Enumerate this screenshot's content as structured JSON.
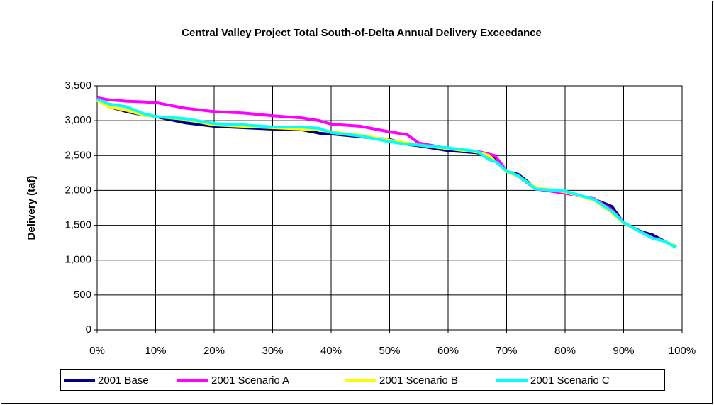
{
  "chart_data": {
    "type": "line",
    "title": "Central Valley Project Total South-of-Delta Annual Delivery Exceedance",
    "y_label": "Delivery (taf)",
    "x": [
      0,
      2,
      5,
      8,
      10,
      15,
      20,
      25,
      30,
      35,
      38,
      40,
      45,
      50,
      53,
      55,
      60,
      65,
      67,
      68,
      70,
      72,
      75,
      80,
      85,
      88,
      90,
      93,
      95,
      97,
      99
    ],
    "series": [
      {
        "name": "2001 Base",
        "color": "#000080",
        "values": [
          3300,
          3200,
          3130,
          3080,
          3060,
          2970,
          2920,
          2900,
          2880,
          2870,
          2820,
          2810,
          2770,
          2730,
          2660,
          2640,
          2570,
          2540,
          2480,
          2460,
          2270,
          2230,
          2030,
          1980,
          1870,
          1770,
          1530,
          1410,
          1360,
          1270,
          1200
        ]
      },
      {
        "name": "2001 Scenario A",
        "color": "#ff00ff",
        "values": [
          3330,
          3300,
          3280,
          3270,
          3260,
          3180,
          3130,
          3110,
          3070,
          3040,
          3000,
          2950,
          2920,
          2840,
          2800,
          2680,
          2600,
          2560,
          2520,
          2500,
          2280,
          2200,
          2020,
          1960,
          1880,
          1720,
          1540,
          1400,
          1320,
          1270,
          1190
        ]
      },
      {
        "name": "2001 Scenario B",
        "color": "#ffff00",
        "values": [
          3290,
          3200,
          3150,
          3080,
          3060,
          3020,
          2940,
          2920,
          2900,
          2880,
          2870,
          2840,
          2790,
          2720,
          2680,
          2650,
          2600,
          2550,
          2500,
          2420,
          2270,
          2200,
          2040,
          1980,
          1860,
          1680,
          1530,
          1400,
          1310,
          1270,
          1200
        ]
      },
      {
        "name": "2001 Scenario C",
        "color": "#00ffff",
        "values": [
          3310,
          3240,
          3200,
          3100,
          3060,
          3030,
          2960,
          2940,
          2910,
          2910,
          2890,
          2830,
          2780,
          2700,
          2660,
          2650,
          2610,
          2560,
          2440,
          2420,
          2280,
          2210,
          2020,
          1990,
          1870,
          1700,
          1540,
          1400,
          1310,
          1270,
          1180
        ]
      }
    ],
    "xlim": [
      0,
      100
    ],
    "xticks": [
      {
        "value": 0,
        "label": "0%"
      },
      {
        "value": 10,
        "label": "10%"
      },
      {
        "value": 20,
        "label": "20%"
      },
      {
        "value": 30,
        "label": "30%"
      },
      {
        "value": 40,
        "label": "40%"
      },
      {
        "value": 50,
        "label": "50%"
      },
      {
        "value": 60,
        "label": "60%"
      },
      {
        "value": 70,
        "label": "70%"
      },
      {
        "value": 80,
        "label": "80%"
      },
      {
        "value": 90,
        "label": "90%"
      },
      {
        "value": 100,
        "label": "100%"
      }
    ],
    "ylim": [
      0,
      3500
    ],
    "yticks": [
      0,
      500,
      {
        "value": 1000,
        "label": "1,000"
      },
      {
        "value": 1500,
        "label": "1,500"
      },
      {
        "value": 2000,
        "label": "2,000"
      },
      {
        "value": 2500,
        "label": "2,500"
      },
      {
        "value": 3000,
        "label": "3,000"
      },
      {
        "value": 3500,
        "label": "3,500"
      }
    ],
    "grid": true,
    "legend": "bottom"
  }
}
